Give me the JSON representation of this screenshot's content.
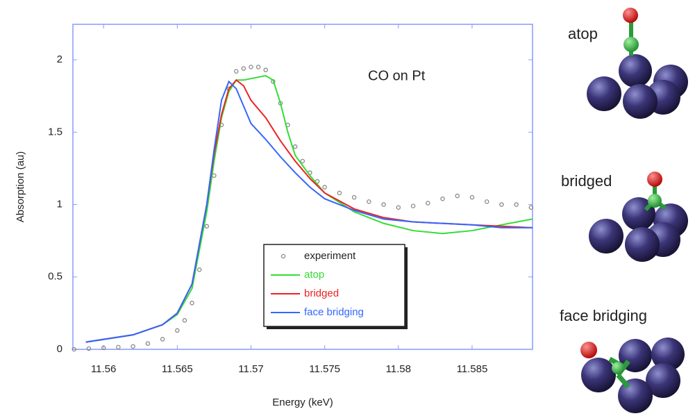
{
  "chart_data": {
    "type": "line",
    "annotation": "CO on Pt",
    "x_label": "Energy (keV)",
    "y_label": "Absorption (au)",
    "xlim": [
      11.55792,
      11.5891
    ],
    "ylim": [
      0,
      2.245
    ],
    "xticks": [
      11.56,
      11.565,
      11.57,
      11.575,
      11.58,
      11.585
    ],
    "yticks": [
      0,
      0.5,
      1,
      1.5,
      2
    ],
    "axis_color": "#8899ff",
    "series": [
      {
        "name": "experiment",
        "color": "#888888",
        "mode": "markers",
        "x": [
          11.558,
          11.559,
          11.56,
          11.561,
          11.562,
          11.563,
          11.564,
          11.565,
          11.5655,
          11.566,
          11.5665,
          11.567,
          11.5675,
          11.568,
          11.5685,
          11.569,
          11.5695,
          11.57,
          11.5705,
          11.571,
          11.5715,
          11.572,
          11.5725,
          11.573,
          11.5735,
          11.574,
          11.5745,
          11.575,
          11.576,
          11.577,
          11.578,
          11.579,
          11.58,
          11.581,
          11.582,
          11.583,
          11.584,
          11.585,
          11.586,
          11.587,
          11.588,
          11.589
        ],
        "values": [
          0,
          0.005,
          0.01,
          0.015,
          0.02,
          0.04,
          0.07,
          0.13,
          0.2,
          0.32,
          0.55,
          0.85,
          1.2,
          1.55,
          1.8,
          1.92,
          1.94,
          1.95,
          1.95,
          1.93,
          1.85,
          1.7,
          1.55,
          1.4,
          1.3,
          1.22,
          1.16,
          1.12,
          1.08,
          1.05,
          1.02,
          1.0,
          0.98,
          0.99,
          1.01,
          1.04,
          1.06,
          1.05,
          1.02,
          1.0,
          1.0,
          0.98
        ]
      },
      {
        "name": "atop",
        "color": "#33dd33",
        "mode": "line",
        "x": [
          11.5588,
          11.562,
          11.564,
          11.565,
          11.566,
          11.567,
          11.5675,
          11.568,
          11.5685,
          11.569,
          11.5695,
          11.57,
          11.571,
          11.5715,
          11.572,
          11.5725,
          11.573,
          11.574,
          11.575,
          11.577,
          11.579,
          11.581,
          11.583,
          11.585,
          11.587,
          11.5891
        ],
        "values": [
          0.05,
          0.1,
          0.17,
          0.24,
          0.42,
          0.95,
          1.3,
          1.6,
          1.78,
          1.86,
          1.86,
          1.87,
          1.89,
          1.86,
          1.7,
          1.5,
          1.34,
          1.2,
          1.08,
          0.95,
          0.87,
          0.82,
          0.8,
          0.82,
          0.86,
          0.9
        ]
      },
      {
        "name": "bridged",
        "color": "#ee2222",
        "mode": "line",
        "x": [
          11.5588,
          11.562,
          11.564,
          11.565,
          11.566,
          11.567,
          11.5675,
          11.568,
          11.5685,
          11.569,
          11.5695,
          11.57,
          11.571,
          11.572,
          11.573,
          11.574,
          11.575,
          11.577,
          11.579,
          11.581,
          11.583,
          11.585,
          11.587,
          11.5891
        ],
        "values": [
          0.05,
          0.1,
          0.17,
          0.25,
          0.45,
          1.0,
          1.35,
          1.62,
          1.8,
          1.86,
          1.82,
          1.72,
          1.6,
          1.44,
          1.3,
          1.18,
          1.08,
          0.97,
          0.91,
          0.88,
          0.87,
          0.86,
          0.85,
          0.84
        ]
      },
      {
        "name": "face bridging",
        "color": "#3366ff",
        "mode": "line",
        "x": [
          11.5588,
          11.562,
          11.564,
          11.565,
          11.566,
          11.567,
          11.5675,
          11.568,
          11.5685,
          11.569,
          11.5695,
          11.57,
          11.571,
          11.572,
          11.573,
          11.574,
          11.575,
          11.577,
          11.579,
          11.581,
          11.583,
          11.585,
          11.587,
          11.5891
        ],
        "values": [
          0.05,
          0.1,
          0.17,
          0.25,
          0.45,
          1.0,
          1.38,
          1.72,
          1.85,
          1.8,
          1.68,
          1.56,
          1.45,
          1.33,
          1.22,
          1.12,
          1.04,
          0.96,
          0.9,
          0.88,
          0.87,
          0.86,
          0.84,
          0.84
        ]
      }
    ]
  },
  "illustrations": [
    {
      "label": "atop"
    },
    {
      "label": "bridged"
    },
    {
      "label": "face bridging"
    }
  ]
}
